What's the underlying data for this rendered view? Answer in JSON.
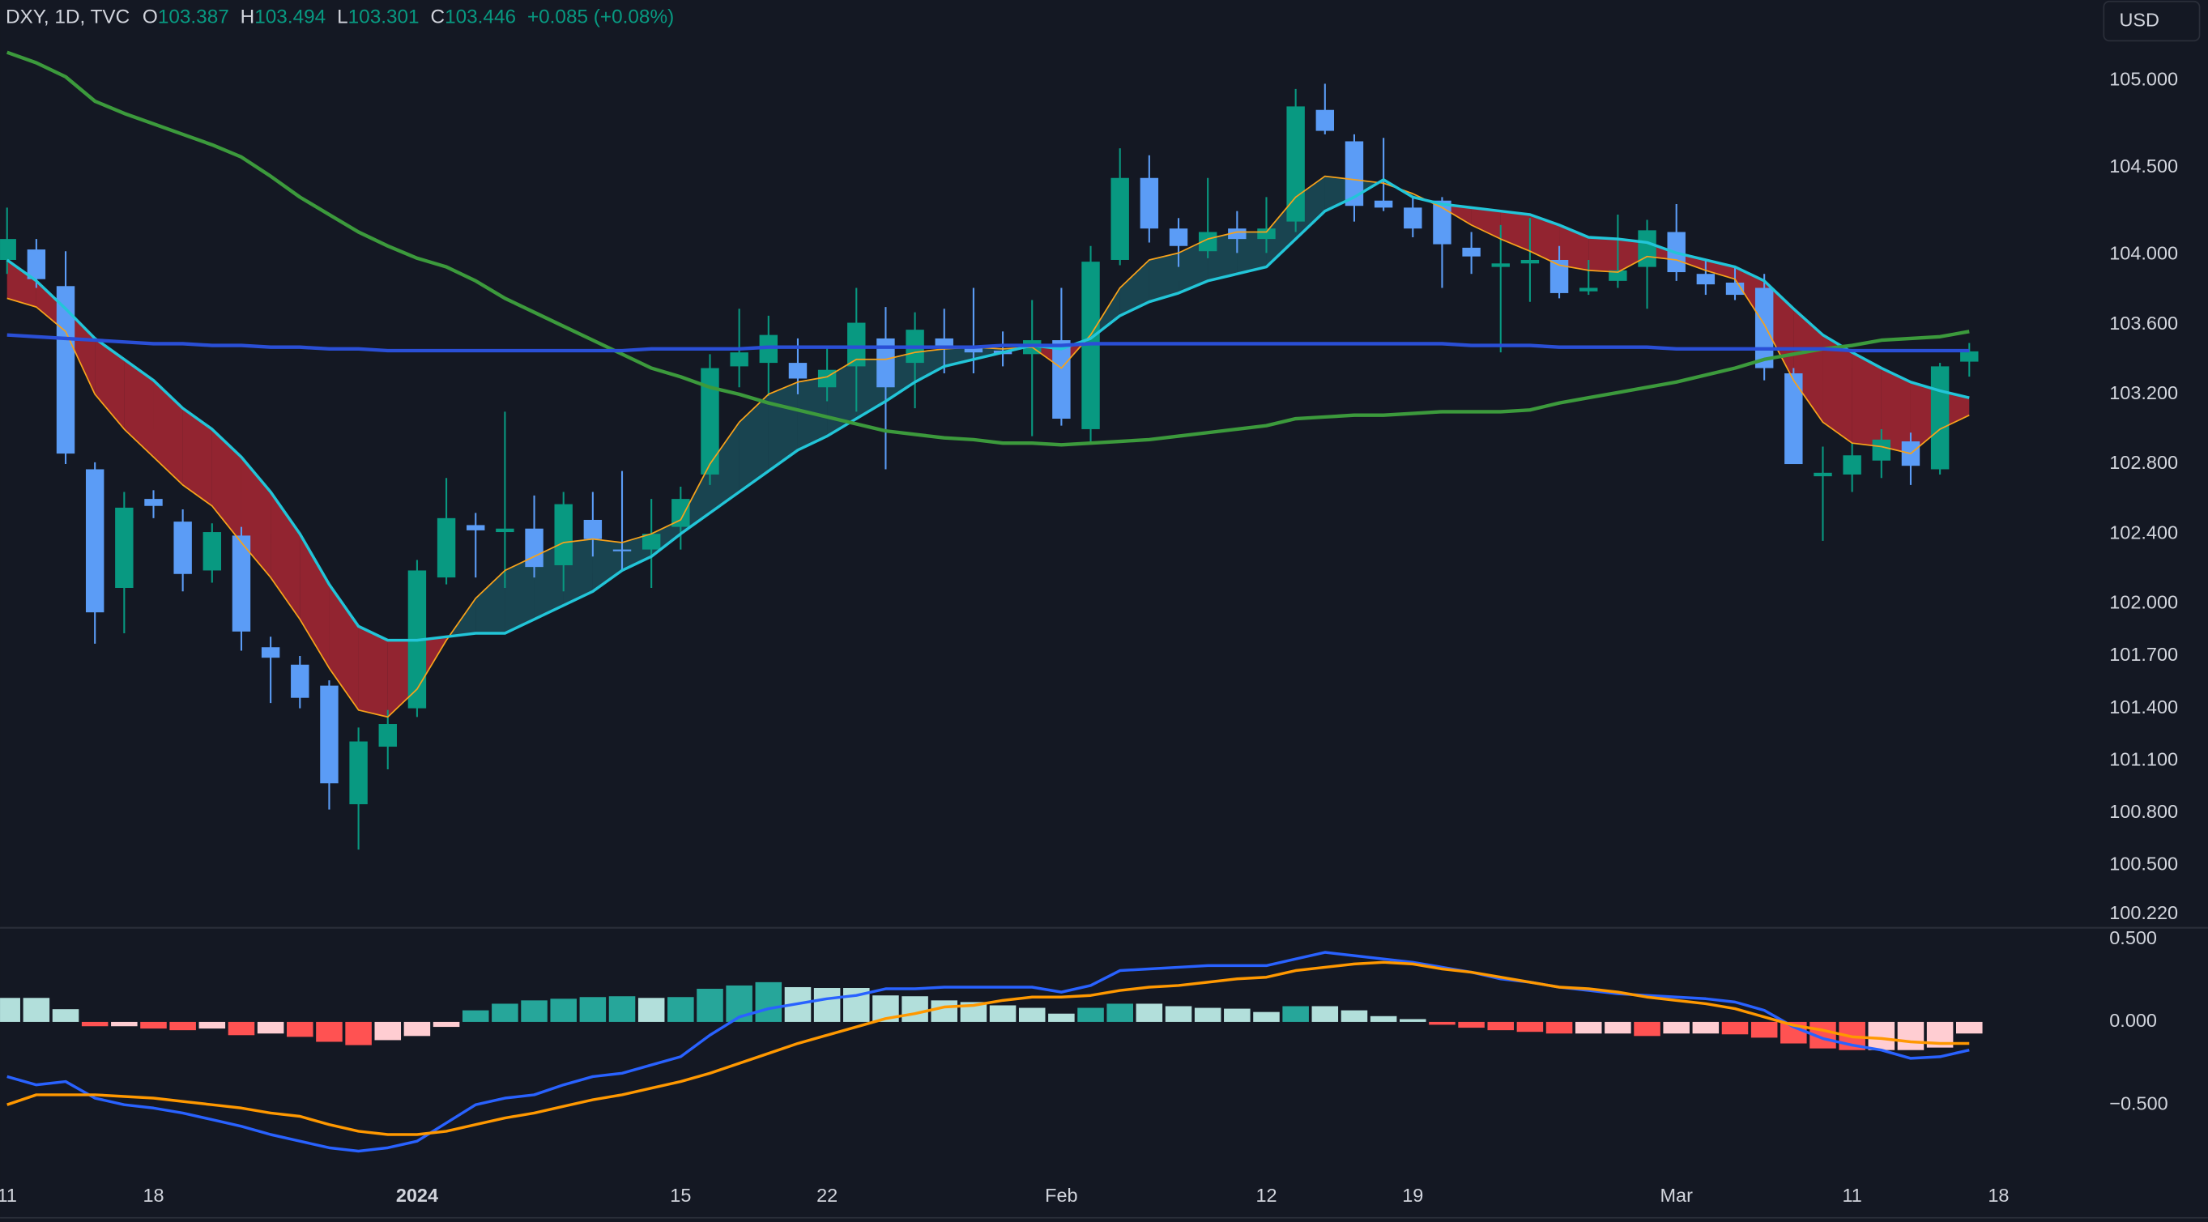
{
  "header": {
    "symbol": "DXY, 1D, TVC",
    "labels": [
      "O",
      "H",
      "L",
      "C"
    ],
    "change": "+0.085 (+0.08%)",
    "currency": "USD"
  },
  "chart_data": [
    {
      "type": "candlestick",
      "open": [
        103.97,
        104.03,
        103.82,
        102.77,
        102.09,
        102.6,
        102.47,
        102.19,
        102.39,
        101.75,
        101.65,
        101.53,
        100.85,
        101.18,
        101.4,
        102.15,
        102.45,
        102.41,
        102.43,
        102.22,
        102.48,
        102.31,
        102.31,
        102.44,
        102.74,
        103.36,
        103.38,
        103.38,
        103.24,
        103.36,
        103.52,
        103.38,
        103.52,
        103.48,
        103.45,
        103.43,
        103.51,
        103.0,
        103.97,
        104.44,
        104.15,
        104.02,
        104.15,
        104.09,
        104.19,
        104.83,
        104.65,
        104.31,
        104.27,
        104.31,
        104.04,
        103.93,
        103.95,
        103.97,
        103.79,
        103.85,
        103.93,
        104.13,
        103.89,
        103.84,
        103.81,
        103.32,
        102.73,
        102.74,
        102.82,
        102.93,
        102.77,
        103.387
      ],
      "high": [
        104.27,
        104.09,
        104.02,
        102.81,
        102.64,
        102.65,
        102.54,
        102.46,
        102.44,
        101.81,
        101.7,
        101.56,
        101.29,
        101.39,
        102.25,
        102.72,
        102.52,
        103.1,
        102.62,
        102.64,
        102.64,
        102.76,
        102.6,
        102.67,
        103.43,
        103.69,
        103.65,
        103.52,
        103.48,
        103.81,
        103.7,
        103.67,
        103.69,
        103.81,
        103.56,
        103.74,
        103.81,
        104.05,
        104.61,
        104.57,
        104.21,
        104.44,
        104.25,
        104.33,
        104.95,
        104.98,
        104.69,
        104.67,
        104.33,
        104.33,
        104.13,
        104.17,
        104.21,
        104.05,
        103.97,
        104.23,
        104.2,
        104.29,
        103.97,
        103.93,
        103.89,
        103.35,
        102.9,
        102.92,
        103.0,
        102.98,
        103.38,
        103.494
      ],
      "low": [
        103.89,
        103.81,
        102.8,
        101.77,
        101.83,
        102.49,
        102.07,
        102.12,
        101.73,
        101.43,
        101.4,
        100.82,
        100.59,
        101.05,
        101.35,
        102.11,
        102.15,
        102.09,
        102.15,
        102.07,
        102.27,
        102.19,
        102.09,
        102.31,
        102.68,
        103.24,
        103.19,
        103.2,
        103.16,
        103.1,
        102.77,
        103.12,
        103.32,
        103.32,
        103.36,
        102.96,
        103.02,
        102.92,
        103.94,
        104.07,
        103.93,
        103.98,
        104.01,
        104.01,
        104.13,
        104.69,
        104.19,
        104.25,
        104.1,
        103.81,
        103.89,
        103.44,
        103.73,
        103.75,
        103.77,
        103.81,
        103.69,
        103.85,
        103.77,
        103.74,
        103.28,
        102.8,
        102.36,
        102.64,
        102.72,
        102.68,
        102.74,
        103.301
      ],
      "close": [
        104.09,
        103.86,
        102.86,
        101.95,
        102.55,
        102.56,
        102.17,
        102.41,
        101.84,
        101.69,
        101.46,
        100.97,
        101.21,
        101.31,
        102.19,
        102.49,
        102.42,
        102.43,
        102.21,
        102.57,
        102.37,
        102.3,
        102.4,
        102.6,
        103.35,
        103.44,
        103.54,
        103.29,
        103.34,
        103.61,
        103.24,
        103.57,
        103.48,
        103.44,
        103.43,
        103.51,
        103.06,
        103.96,
        104.44,
        104.15,
        104.05,
        104.13,
        104.09,
        104.15,
        104.85,
        104.71,
        104.28,
        104.27,
        104.15,
        104.06,
        103.99,
        103.95,
        103.97,
        103.78,
        103.81,
        103.91,
        104.14,
        103.9,
        103.83,
        103.77,
        103.35,
        102.8,
        102.75,
        102.85,
        102.94,
        102.79,
        103.36,
        103.446
      ],
      "up_color": "#089981",
      "down_color": "#5b9cf6",
      "ribbon_colors": [
        "#1f7a88",
        "#b22833"
      ],
      "series": [
        {
          "color": "#f7a21b",
          "width": 1,
          "values": [
            103.75,
            103.7,
            103.56,
            103.2,
            103.0,
            102.84,
            102.68,
            102.56,
            102.35,
            102.15,
            101.91,
            101.63,
            101.39,
            101.35,
            101.51,
            101.79,
            102.03,
            102.19,
            102.27,
            102.35,
            102.37,
            102.35,
            102.4,
            102.48,
            102.8,
            103.04,
            103.2,
            103.27,
            103.3,
            103.4,
            103.4,
            103.44,
            103.46,
            103.47,
            103.46,
            103.47,
            103.35,
            103.54,
            103.81,
            103.97,
            104.01,
            104.09,
            104.13,
            104.13,
            104.33,
            104.45,
            104.43,
            104.41,
            104.35,
            104.27,
            104.17,
            104.09,
            104.02,
            103.94,
            103.91,
            103.9,
            103.99,
            103.97,
            103.91,
            103.86,
            103.6,
            103.28,
            103.04,
            102.92,
            102.9,
            102.86,
            103.0,
            103.08
          ]
        },
        {
          "color": "#22c5d8",
          "width": 2,
          "values": [
            103.97,
            103.85,
            103.69,
            103.52,
            103.4,
            103.28,
            103.12,
            103.0,
            102.84,
            102.64,
            102.4,
            102.11,
            101.87,
            101.79,
            101.79,
            101.81,
            101.83,
            101.83,
            101.91,
            101.99,
            102.07,
            102.19,
            102.27,
            102.4,
            102.52,
            102.64,
            102.76,
            102.88,
            102.96,
            103.06,
            103.16,
            103.27,
            103.36,
            103.4,
            103.44,
            103.48,
            103.46,
            103.52,
            103.65,
            103.73,
            103.78,
            103.85,
            103.89,
            103.93,
            104.09,
            104.25,
            104.33,
            104.43,
            104.33,
            104.29,
            104.27,
            104.25,
            104.23,
            104.17,
            104.1,
            104.09,
            104.07,
            104.01,
            103.97,
            103.93,
            103.85,
            103.69,
            103.54,
            103.44,
            103.35,
            103.27,
            103.22,
            103.18
          ]
        },
        {
          "color": "#3c9a3c",
          "width": 2.5,
          "values": [
            105.16,
            105.1,
            105.02,
            104.88,
            104.81,
            104.75,
            104.69,
            104.63,
            104.56,
            104.45,
            104.33,
            104.23,
            104.13,
            104.05,
            103.98,
            103.93,
            103.85,
            103.75,
            103.67,
            103.59,
            103.51,
            103.43,
            103.35,
            103.3,
            103.24,
            103.2,
            103.15,
            103.11,
            103.07,
            103.03,
            102.99,
            102.97,
            102.95,
            102.94,
            102.92,
            102.92,
            102.91,
            102.92,
            102.93,
            102.94,
            102.96,
            102.98,
            103.0,
            103.02,
            103.06,
            103.07,
            103.08,
            103.08,
            103.09,
            103.1,
            103.1,
            103.1,
            103.11,
            103.15,
            103.18,
            103.21,
            103.24,
            103.27,
            103.31,
            103.35,
            103.4,
            103.43,
            103.46,
            103.48,
            103.51,
            103.52,
            103.53,
            103.56
          ]
        },
        {
          "color": "#2a4fd6",
          "width": 2.5,
          "values": [
            103.54,
            103.53,
            103.52,
            103.51,
            103.5,
            103.49,
            103.49,
            103.48,
            103.48,
            103.47,
            103.47,
            103.46,
            103.46,
            103.45,
            103.45,
            103.45,
            103.45,
            103.45,
            103.45,
            103.45,
            103.45,
            103.45,
            103.46,
            103.46,
            103.46,
            103.46,
            103.47,
            103.47,
            103.47,
            103.47,
            103.47,
            103.47,
            103.47,
            103.47,
            103.48,
            103.48,
            103.48,
            103.49,
            103.49,
            103.49,
            103.49,
            103.49,
            103.49,
            103.49,
            103.49,
            103.49,
            103.49,
            103.49,
            103.49,
            103.49,
            103.48,
            103.48,
            103.48,
            103.47,
            103.47,
            103.47,
            103.47,
            103.46,
            103.46,
            103.46,
            103.46,
            103.46,
            103.46,
            103.45,
            103.45,
            103.45,
            103.45,
            103.45
          ]
        }
      ],
      "xlim": [
        -0.24,
        71.4
      ],
      "ylim": [
        100.15,
        105.46
      ],
      "yticks": [
        {
          "value": 105,
          "label": "105.000"
        },
        {
          "value": 104.5,
          "label": "104.500"
        },
        {
          "value": 104,
          "label": "104.000"
        },
        {
          "value": 103.6,
          "label": "103.600"
        },
        {
          "value": 103.2,
          "label": "103.200"
        },
        {
          "value": 102.8,
          "label": "102.800"
        },
        {
          "value": 102.4,
          "label": "102.400"
        },
        {
          "value": 102,
          "label": "102.000"
        },
        {
          "value": 101.7,
          "label": "101.700"
        },
        {
          "value": 101.4,
          "label": "101.400"
        },
        {
          "value": 101.1,
          "label": "101.100"
        },
        {
          "value": 100.8,
          "label": "100.800"
        },
        {
          "value": 100.5,
          "label": "100.500"
        },
        {
          "value": 100.22,
          "label": "100.220"
        }
      ]
    },
    {
      "type": "macd",
      "histogram": [
        0.145,
        0.145,
        0.077,
        -0.026,
        -0.026,
        -0.04,
        -0.05,
        -0.04,
        -0.08,
        -0.07,
        -0.09,
        -0.12,
        -0.14,
        -0.11,
        -0.085,
        -0.03,
        0.07,
        0.11,
        0.13,
        0.14,
        0.15,
        0.155,
        0.145,
        0.15,
        0.2,
        0.22,
        0.24,
        0.21,
        0.205,
        0.205,
        0.16,
        0.155,
        0.13,
        0.12,
        0.1,
        0.085,
        0.05,
        0.085,
        0.11,
        0.11,
        0.095,
        0.085,
        0.08,
        0.06,
        0.095,
        0.095,
        0.07,
        0.035,
        0.017,
        -0.017,
        -0.035,
        -0.05,
        -0.06,
        -0.07,
        -0.07,
        -0.07,
        -0.085,
        -0.07,
        -0.07,
        -0.075,
        -0.095,
        -0.13,
        -0.16,
        -0.17,
        -0.17,
        -0.17,
        -0.155,
        -0.07
      ],
      "histogram_colors": [
        "#26a69a",
        "#b2dfdb",
        "#ff5252",
        "#ffcdd2"
      ],
      "series": [
        {
          "color": "#2962ff",
          "values": [
            -0.33,
            -0.38,
            -0.36,
            -0.46,
            -0.5,
            -0.52,
            -0.55,
            -0.59,
            -0.63,
            -0.68,
            -0.72,
            -0.76,
            -0.78,
            -0.76,
            -0.72,
            -0.61,
            -0.5,
            -0.46,
            -0.44,
            -0.38,
            -0.33,
            -0.31,
            -0.26,
            -0.21,
            -0.08,
            0.03,
            0.08,
            0.11,
            0.14,
            0.16,
            0.2,
            0.2,
            0.21,
            0.21,
            0.21,
            0.21,
            0.18,
            0.22,
            0.31,
            0.32,
            0.33,
            0.34,
            0.34,
            0.34,
            0.38,
            0.42,
            0.4,
            0.38,
            0.36,
            0.33,
            0.3,
            0.26,
            0.24,
            0.21,
            0.19,
            0.17,
            0.16,
            0.15,
            0.14,
            0.12,
            0.07,
            -0.03,
            -0.1,
            -0.14,
            -0.17,
            -0.22,
            -0.21,
            -0.17
          ]
        },
        {
          "color": "#ff9800",
          "values": [
            -0.5,
            -0.44,
            -0.44,
            -0.44,
            -0.45,
            -0.46,
            -0.48,
            -0.5,
            -0.52,
            -0.55,
            -0.57,
            -0.62,
            -0.66,
            -0.68,
            -0.68,
            -0.66,
            -0.62,
            -0.58,
            -0.55,
            -0.51,
            -0.47,
            -0.44,
            -0.4,
            -0.36,
            -0.31,
            -0.25,
            -0.19,
            -0.13,
            -0.08,
            -0.03,
            0.02,
            0.05,
            0.09,
            0.1,
            0.13,
            0.15,
            0.15,
            0.16,
            0.19,
            0.21,
            0.22,
            0.24,
            0.26,
            0.27,
            0.31,
            0.33,
            0.35,
            0.36,
            0.35,
            0.32,
            0.3,
            0.27,
            0.24,
            0.21,
            0.2,
            0.18,
            0.15,
            0.13,
            0.11,
            0.08,
            0.03,
            -0.02,
            -0.05,
            -0.09,
            -0.1,
            -0.12,
            -0.13,
            -0.13
          ]
        }
      ],
      "xlim": [
        -0.24,
        71.4
      ],
      "ylim": [
        -0.97,
        0.56
      ],
      "yticks": [
        {
          "value": 0.5,
          "label": "0.500"
        },
        {
          "value": 0,
          "label": "0.000"
        },
        {
          "value": -0.5,
          "label": "−0.500"
        }
      ],
      "xticks": [
        {
          "value": 0,
          "label": "11"
        },
        {
          "value": 5,
          "label": "18"
        },
        {
          "value": 14,
          "label": "2024",
          "bold": true
        },
        {
          "value": 23,
          "label": "15"
        },
        {
          "value": 28,
          "label": "22"
        },
        {
          "value": 36,
          "label": "Feb"
        },
        {
          "value": 43,
          "label": "12"
        },
        {
          "value": 48,
          "label": "19"
        },
        {
          "value": 57,
          "label": "Mar"
        },
        {
          "value": 63,
          "label": "11"
        },
        {
          "value": 68,
          "label": "18"
        }
      ]
    }
  ]
}
